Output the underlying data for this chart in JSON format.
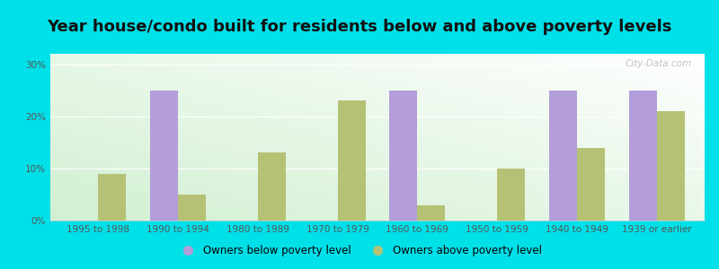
{
  "title": "Year house/condo built for residents below and above poverty levels",
  "categories": [
    "1995 to 1998",
    "1990 to 1994",
    "1980 to 1989",
    "1970 to 1979",
    "1960 to 1969",
    "1950 to 1959",
    "1940 to 1949",
    "1939 or earlier"
  ],
  "below_poverty": [
    0,
    25,
    0,
    0,
    25,
    0,
    25,
    25
  ],
  "above_poverty": [
    9,
    5,
    13,
    23,
    3,
    10,
    14,
    21
  ],
  "below_color": "#b39ddb",
  "above_color": "#b5c275",
  "outer_bg": "#00e0e8",
  "yticks": [
    0,
    10,
    20,
    30
  ],
  "ylim": [
    0,
    32
  ],
  "bar_width": 0.35,
  "legend_below": "Owners below poverty level",
  "legend_above": "Owners above poverty level",
  "title_fontsize": 13,
  "tick_fontsize": 7.5,
  "legend_fontsize": 8.5,
  "watermark": "City-Data.com",
  "grid_color": "#ffffff",
  "tick_color": "#555555"
}
